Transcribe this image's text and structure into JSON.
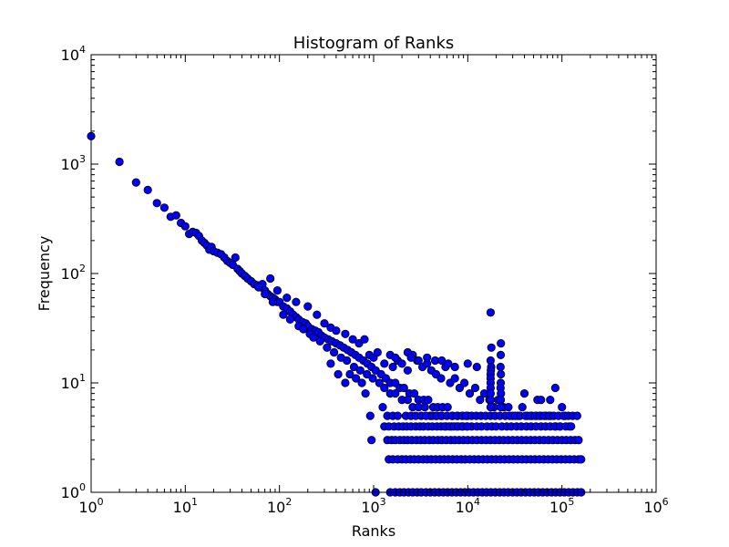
{
  "chart_data": {
    "type": "scatter",
    "title": "Histogram of Ranks",
    "xlabel": "Ranks",
    "ylabel": "Frequency",
    "xscale": "log",
    "yscale": "log",
    "xlim": [
      1,
      1000000
    ],
    "ylim": [
      1,
      10000
    ],
    "xticks": [
      {
        "base": "10",
        "exp": "0"
      },
      {
        "base": "10",
        "exp": "1"
      },
      {
        "base": "10",
        "exp": "2"
      },
      {
        "base": "10",
        "exp": "3"
      },
      {
        "base": "10",
        "exp": "4"
      },
      {
        "base": "10",
        "exp": "5"
      },
      {
        "base": "10",
        "exp": "6"
      }
    ],
    "yticks": [
      {
        "base": "10",
        "exp": "0"
      },
      {
        "base": "10",
        "exp": "1"
      },
      {
        "base": "10",
        "exp": "2"
      },
      {
        "base": "10",
        "exp": "3"
      },
      {
        "base": "10",
        "exp": "4"
      }
    ],
    "marker_color": "#0000ff",
    "edge_color": "#000000",
    "grid": false,
    "points": [
      [
        1,
        1800
      ],
      [
        2,
        1050
      ],
      [
        3,
        680
      ],
      [
        4,
        580
      ],
      [
        5,
        440
      ],
      [
        6,
        400
      ],
      [
        7,
        330
      ],
      [
        8,
        340
      ],
      [
        9,
        290
      ],
      [
        10,
        270
      ],
      [
        11,
        230
      ],
      [
        12,
        240
      ],
      [
        13,
        235
      ],
      [
        14,
        220
      ],
      [
        15,
        200
      ],
      [
        16,
        190
      ],
      [
        17,
        180
      ],
      [
        18,
        165
      ],
      [
        19,
        175
      ],
      [
        20,
        160
      ],
      [
        22,
        155
      ],
      [
        24,
        150
      ],
      [
        26,
        140
      ],
      [
        28,
        130
      ],
      [
        30,
        125
      ],
      [
        32,
        120
      ],
      [
        34,
        140
      ],
      [
        36,
        110
      ],
      [
        38,
        105
      ],
      [
        40,
        100
      ],
      [
        43,
        95
      ],
      [
        46,
        90
      ],
      [
        50,
        85
      ],
      [
        54,
        80
      ],
      [
        58,
        78
      ],
      [
        62,
        75
      ],
      [
        66,
        80
      ],
      [
        70,
        70
      ],
      [
        75,
        65
      ],
      [
        80,
        62
      ],
      [
        85,
        60
      ],
      [
        90,
        58
      ],
      [
        95,
        55
      ],
      [
        100,
        55
      ],
      [
        110,
        50
      ],
      [
        120,
        48
      ],
      [
        130,
        45
      ],
      [
        140,
        42
      ],
      [
        150,
        40
      ],
      [
        160,
        38
      ],
      [
        175,
        36
      ],
      [
        190,
        35
      ],
      [
        200,
        33
      ],
      [
        220,
        31
      ],
      [
        240,
        30
      ],
      [
        260,
        29
      ],
      [
        280,
        27
      ],
      [
        300,
        26
      ],
      [
        330,
        25
      ],
      [
        360,
        24
      ],
      [
        400,
        23
      ],
      [
        440,
        22
      ],
      [
        480,
        21
      ],
      [
        530,
        20
      ],
      [
        580,
        19
      ],
      [
        640,
        18
      ],
      [
        700,
        17
      ],
      [
        780,
        16
      ],
      [
        860,
        15
      ],
      [
        950,
        14
      ],
      [
        1050,
        13
      ],
      [
        1200,
        12
      ],
      [
        1350,
        11
      ],
      [
        1500,
        10
      ],
      [
        1700,
        10
      ],
      [
        1900,
        9
      ],
      [
        2100,
        9
      ],
      [
        2400,
        8
      ],
      [
        2700,
        8
      ],
      [
        3000,
        7
      ],
      [
        3400,
        7
      ],
      [
        3800,
        7
      ],
      [
        4300,
        6
      ],
      [
        4800,
        6
      ],
      [
        5400,
        6
      ],
      [
        6100,
        6
      ],
      [
        6900,
        5
      ],
      [
        7800,
        5
      ],
      [
        8800,
        5
      ],
      [
        10000,
        5
      ],
      [
        80,
        90
      ],
      [
        95,
        70
      ],
      [
        120,
        60
      ],
      [
        150,
        55
      ],
      [
        200,
        50
      ],
      [
        250,
        42
      ],
      [
        300,
        35
      ],
      [
        350,
        32
      ],
      [
        400,
        30
      ],
      [
        500,
        28
      ],
      [
        600,
        25
      ],
      [
        700,
        23
      ],
      [
        800,
        25
      ],
      [
        900,
        18
      ],
      [
        1000,
        17
      ],
      [
        1100,
        19
      ],
      [
        1300,
        15
      ],
      [
        1600,
        14
      ],
      [
        1800,
        16
      ],
      [
        2000,
        15
      ],
      [
        2300,
        13
      ],
      [
        2600,
        18
      ],
      [
        2900,
        16
      ],
      [
        3300,
        14
      ],
      [
        3700,
        15
      ],
      [
        4100,
        13
      ],
      [
        4600,
        12
      ],
      [
        5200,
        11
      ],
      [
        5800,
        14
      ],
      [
        6500,
        10
      ],
      [
        7300,
        11
      ],
      [
        8200,
        9
      ],
      [
        9200,
        10
      ],
      [
        10500,
        8
      ],
      [
        12000,
        9
      ],
      [
        13500,
        7
      ],
      [
        15000,
        8
      ],
      [
        17000,
        7
      ],
      [
        19000,
        6
      ],
      [
        21000,
        7
      ],
      [
        24000,
        6
      ],
      [
        27000,
        6
      ],
      [
        30000,
        5
      ],
      [
        34000,
        5
      ],
      [
        38000,
        6
      ],
      [
        43000,
        5
      ],
      [
        48000,
        5
      ],
      [
        54000,
        5
      ],
      [
        60000,
        5
      ],
      [
        68000,
        5
      ],
      [
        76000,
        5
      ],
      [
        86000,
        4
      ],
      [
        96000,
        4
      ],
      [
        108000,
        5
      ],
      [
        120000,
        4
      ],
      [
        60,
        75
      ],
      [
        70,
        65
      ],
      [
        85,
        55
      ],
      [
        110,
        42
      ],
      [
        130,
        38
      ],
      [
        160,
        33
      ],
      [
        180,
        31
      ],
      [
        210,
        28
      ],
      [
        230,
        26
      ],
      [
        270,
        24
      ],
      [
        320,
        21
      ],
      [
        380,
        19
      ],
      [
        450,
        17
      ],
      [
        520,
        16
      ],
      [
        620,
        14
      ],
      [
        720,
        13
      ],
      [
        850,
        12
      ],
      [
        980,
        11
      ],
      [
        1150,
        10
      ],
      [
        1300,
        9
      ],
      [
        1500,
        8
      ],
      [
        1700,
        8
      ],
      [
        2000,
        7
      ],
      [
        2300,
        7
      ],
      [
        2600,
        6
      ],
      [
        3000,
        6
      ],
      [
        3500,
        6
      ],
      [
        4000,
        5
      ],
      [
        4600,
        5
      ],
      [
        5200,
        5
      ],
      [
        5900,
        4
      ],
      [
        6700,
        4
      ],
      [
        7600,
        4
      ],
      [
        8600,
        4
      ],
      [
        9800,
        4
      ],
      [
        11000,
        4
      ],
      [
        12500,
        4
      ],
      [
        14000,
        4
      ],
      [
        16000,
        4
      ],
      [
        18000,
        4
      ],
      [
        20000,
        4
      ],
      [
        23000,
        4
      ],
      [
        26000,
        4
      ],
      [
        29000,
        4
      ],
      [
        33000,
        4
      ],
      [
        37000,
        4
      ],
      [
        42000,
        4
      ],
      [
        47000,
        4
      ],
      [
        53000,
        4
      ],
      [
        60000,
        4
      ],
      [
        67000,
        4
      ],
      [
        75000,
        4
      ],
      [
        84000,
        4
      ],
      [
        95000,
        4
      ],
      [
        110000,
        4
      ],
      [
        125000,
        4
      ],
      [
        350,
        15
      ],
      [
        420,
        12
      ],
      [
        500,
        10
      ],
      [
        560,
        12
      ],
      [
        650,
        11
      ],
      [
        750,
        10
      ],
      [
        820,
        8
      ],
      [
        920,
        5
      ],
      [
        950,
        3
      ],
      [
        1250,
        6
      ],
      [
        1400,
        5
      ],
      [
        1600,
        5
      ],
      [
        1800,
        5
      ],
      [
        2200,
        5
      ],
      [
        2500,
        5
      ],
      [
        2800,
        5
      ],
      [
        3200,
        5
      ],
      [
        3600,
        5
      ],
      [
        4200,
        5
      ],
      [
        4700,
        5
      ],
      [
        5300,
        5
      ],
      [
        6000,
        5
      ],
      [
        6800,
        5
      ],
      [
        7700,
        5
      ],
      [
        8700,
        5
      ],
      [
        9600,
        5
      ],
      [
        11000,
        5
      ],
      [
        12300,
        5
      ],
      [
        13800,
        5
      ],
      [
        15500,
        5
      ],
      [
        17500,
        5
      ],
      [
        19500,
        5
      ],
      [
        22000,
        5
      ],
      [
        25000,
        5
      ],
      [
        28000,
        5
      ],
      [
        32000,
        5
      ],
      [
        36000,
        5
      ],
      [
        41000,
        5
      ],
      [
        46000,
        5
      ],
      [
        52000,
        5
      ],
      [
        58000,
        5
      ],
      [
        65000,
        5
      ],
      [
        73000,
        5
      ],
      [
        82000,
        5
      ],
      [
        92000,
        5
      ],
      [
        104000,
        5
      ],
      [
        117000,
        5
      ],
      [
        130000,
        5
      ],
      [
        145000,
        5
      ],
      [
        1300,
        4
      ],
      [
        1450,
        4
      ],
      [
        1650,
        4
      ],
      [
        1850,
        4
      ],
      [
        2050,
        4
      ],
      [
        2250,
        4
      ],
      [
        2500,
        4
      ],
      [
        2800,
        4
      ],
      [
        3100,
        4
      ],
      [
        3400,
        4
      ],
      [
        3800,
        4
      ],
      [
        4200,
        4
      ],
      [
        4700,
        4
      ],
      [
        5200,
        4
      ],
      [
        5700,
        4
      ],
      [
        6400,
        4
      ],
      [
        7100,
        4
      ],
      [
        7900,
        4
      ],
      [
        8900,
        4
      ],
      [
        9900,
        4
      ],
      [
        1400,
        3
      ],
      [
        1550,
        3
      ],
      [
        1700,
        3
      ],
      [
        1900,
        3
      ],
      [
        2100,
        3
      ],
      [
        2300,
        3
      ],
      [
        2550,
        3
      ],
      [
        2850,
        3
      ],
      [
        3150,
        3
      ],
      [
        3500,
        3
      ],
      [
        3900,
        3
      ],
      [
        4300,
        3
      ],
      [
        4800,
        3
      ],
      [
        5300,
        3
      ],
      [
        5900,
        3
      ],
      [
        6600,
        3
      ],
      [
        7300,
        3
      ],
      [
        8100,
        3
      ],
      [
        9000,
        3
      ],
      [
        10000,
        3
      ],
      [
        11200,
        3
      ],
      [
        12500,
        3
      ],
      [
        14000,
        3
      ],
      [
        15600,
        3
      ],
      [
        17400,
        3
      ],
      [
        19400,
        3
      ],
      [
        21600,
        3
      ],
      [
        24000,
        3
      ],
      [
        26800,
        3
      ],
      [
        30000,
        3
      ],
      [
        33500,
        3
      ],
      [
        37400,
        3
      ],
      [
        41700,
        3
      ],
      [
        46500,
        3
      ],
      [
        51800,
        3
      ],
      [
        57800,
        3
      ],
      [
        64500,
        3
      ],
      [
        72000,
        3
      ],
      [
        80300,
        3
      ],
      [
        89600,
        3
      ],
      [
        100000,
        3
      ],
      [
        111000,
        3
      ],
      [
        124000,
        3
      ],
      [
        138000,
        3
      ],
      [
        150000,
        3
      ],
      [
        1450,
        2
      ],
      [
        1600,
        2
      ],
      [
        1800,
        2
      ],
      [
        2000,
        2
      ],
      [
        2200,
        2
      ],
      [
        2450,
        2
      ],
      [
        2700,
        2
      ],
      [
        3000,
        2
      ],
      [
        3350,
        2
      ],
      [
        3700,
        2
      ],
      [
        4100,
        2
      ],
      [
        4550,
        2
      ],
      [
        5050,
        2
      ],
      [
        5600,
        2
      ],
      [
        6200,
        2
      ],
      [
        6900,
        2
      ],
      [
        7650,
        2
      ],
      [
        8500,
        2
      ],
      [
        9400,
        2
      ],
      [
        10500,
        2
      ],
      [
        11700,
        2
      ],
      [
        13000,
        2
      ],
      [
        14500,
        2
      ],
      [
        16100,
        2
      ],
      [
        17900,
        2
      ],
      [
        19900,
        2
      ],
      [
        22100,
        2
      ],
      [
        24600,
        2
      ],
      [
        27400,
        2
      ],
      [
        30500,
        2
      ],
      [
        33900,
        2
      ],
      [
        37700,
        2
      ],
      [
        41900,
        2
      ],
      [
        46600,
        2
      ],
      [
        51800,
        2
      ],
      [
        57600,
        2
      ],
      [
        64100,
        2
      ],
      [
        71300,
        2
      ],
      [
        79300,
        2
      ],
      [
        88200,
        2
      ],
      [
        98100,
        2
      ],
      [
        109000,
        2
      ],
      [
        121000,
        2
      ],
      [
        135000,
        2
      ],
      [
        150000,
        2
      ],
      [
        160000,
        2
      ],
      [
        1050,
        1
      ],
      [
        1500,
        1
      ],
      [
        1700,
        1
      ],
      [
        1900,
        1
      ],
      [
        2100,
        1
      ],
      [
        2350,
        1
      ],
      [
        2600,
        1
      ],
      [
        2900,
        1
      ],
      [
        3200,
        1
      ],
      [
        3600,
        1
      ],
      [
        4000,
        1
      ],
      [
        4450,
        1
      ],
      [
        4950,
        1
      ],
      [
        5500,
        1
      ],
      [
        6100,
        1
      ],
      [
        6800,
        1
      ],
      [
        7550,
        1
      ],
      [
        8400,
        1
      ],
      [
        9300,
        1
      ],
      [
        10300,
        1
      ],
      [
        11500,
        1
      ],
      [
        12800,
        1
      ],
      [
        14200,
        1
      ],
      [
        15800,
        1
      ],
      [
        17600,
        1
      ],
      [
        19600,
        1
      ],
      [
        21800,
        1
      ],
      [
        24200,
        1
      ],
      [
        26900,
        1
      ],
      [
        29900,
        1
      ],
      [
        33200,
        1
      ],
      [
        36900,
        1
      ],
      [
        41000,
        1
      ],
      [
        45600,
        1
      ],
      [
        50700,
        1
      ],
      [
        56300,
        1
      ],
      [
        62600,
        1
      ],
      [
        69600,
        1
      ],
      [
        77400,
        1
      ],
      [
        86000,
        1
      ],
      [
        95600,
        1
      ],
      [
        106000,
        1
      ],
      [
        118000,
        1
      ],
      [
        131000,
        1
      ],
      [
        146000,
        1
      ],
      [
        160000,
        1
      ],
      [
        17500,
        44
      ],
      [
        17800,
        21
      ],
      [
        17500,
        16
      ],
      [
        17700,
        14
      ],
      [
        17600,
        13
      ],
      [
        17500,
        12
      ],
      [
        17500,
        11
      ],
      [
        17500,
        10
      ],
      [
        17500,
        9
      ],
      [
        17500,
        8
      ],
      [
        17500,
        7
      ],
      [
        17500,
        6
      ],
      [
        22500,
        23
      ],
      [
        22400,
        18
      ],
      [
        22300,
        14
      ],
      [
        22500,
        12
      ],
      [
        22400,
        10
      ],
      [
        22300,
        9
      ],
      [
        22500,
        8
      ],
      [
        22400,
        7
      ],
      [
        22500,
        6
      ],
      [
        1500,
        18
      ],
      [
        1700,
        17
      ],
      [
        2300,
        19
      ],
      [
        2500,
        17
      ],
      [
        3000,
        16
      ],
      [
        3700,
        17
      ],
      [
        4500,
        16
      ],
      [
        5300,
        16
      ],
      [
        6200,
        15
      ],
      [
        7300,
        14
      ],
      [
        10000,
        15
      ],
      [
        12500,
        14
      ],
      [
        40000,
        8
      ],
      [
        55000,
        7
      ],
      [
        60000,
        7
      ],
      [
        75000,
        7
      ],
      [
        85000,
        9
      ],
      [
        100000,
        6
      ]
    ]
  }
}
